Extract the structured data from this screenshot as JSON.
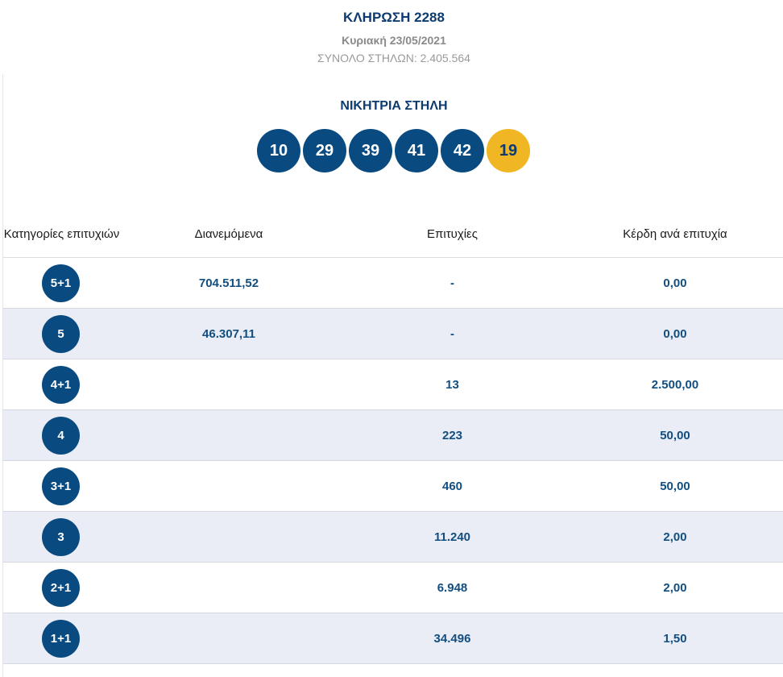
{
  "header": {
    "title": "ΚΛΗΡΩΣΗ 2288",
    "date": "Κυριακή 23/05/2021",
    "total_columns": "ΣΥΝΟΛΟ ΣΤΗΛΩΝ: 2.405.564"
  },
  "winning": {
    "heading": "ΝΙΚΗΤΡΙΑ ΣΤΗΛΗ",
    "numbers": [
      "10",
      "29",
      "39",
      "41",
      "42"
    ],
    "joker": "19"
  },
  "table": {
    "headers": {
      "category": "Κατηγορίες επιτυχιών",
      "distributed": "Διανεμόμενα",
      "winners": "Επιτυχίες",
      "prize": "Κέρδη ανά επιτυχία"
    },
    "rows": [
      {
        "category": "5+1",
        "distributed": "704.511,52",
        "winners": "-",
        "prize": "0,00"
      },
      {
        "category": "5",
        "distributed": "46.307,11",
        "winners": "-",
        "prize": "0,00"
      },
      {
        "category": "4+1",
        "distributed": "",
        "winners": "13",
        "prize": "2.500,00"
      },
      {
        "category": "4",
        "distributed": "",
        "winners": "223",
        "prize": "50,00"
      },
      {
        "category": "3+1",
        "distributed": "",
        "winners": "460",
        "prize": "50,00"
      },
      {
        "category": "3",
        "distributed": "",
        "winners": "11.240",
        "prize": "2,00"
      },
      {
        "category": "2+1",
        "distributed": "",
        "winners": "6.948",
        "prize": "2,00"
      },
      {
        "category": "1+1",
        "distributed": "",
        "winners": "34.496",
        "prize": "1,50"
      }
    ]
  },
  "colors": {
    "brand_blue": "#094a80",
    "joker_yellow": "#f0b623",
    "row_alt": "#eaedf5"
  }
}
